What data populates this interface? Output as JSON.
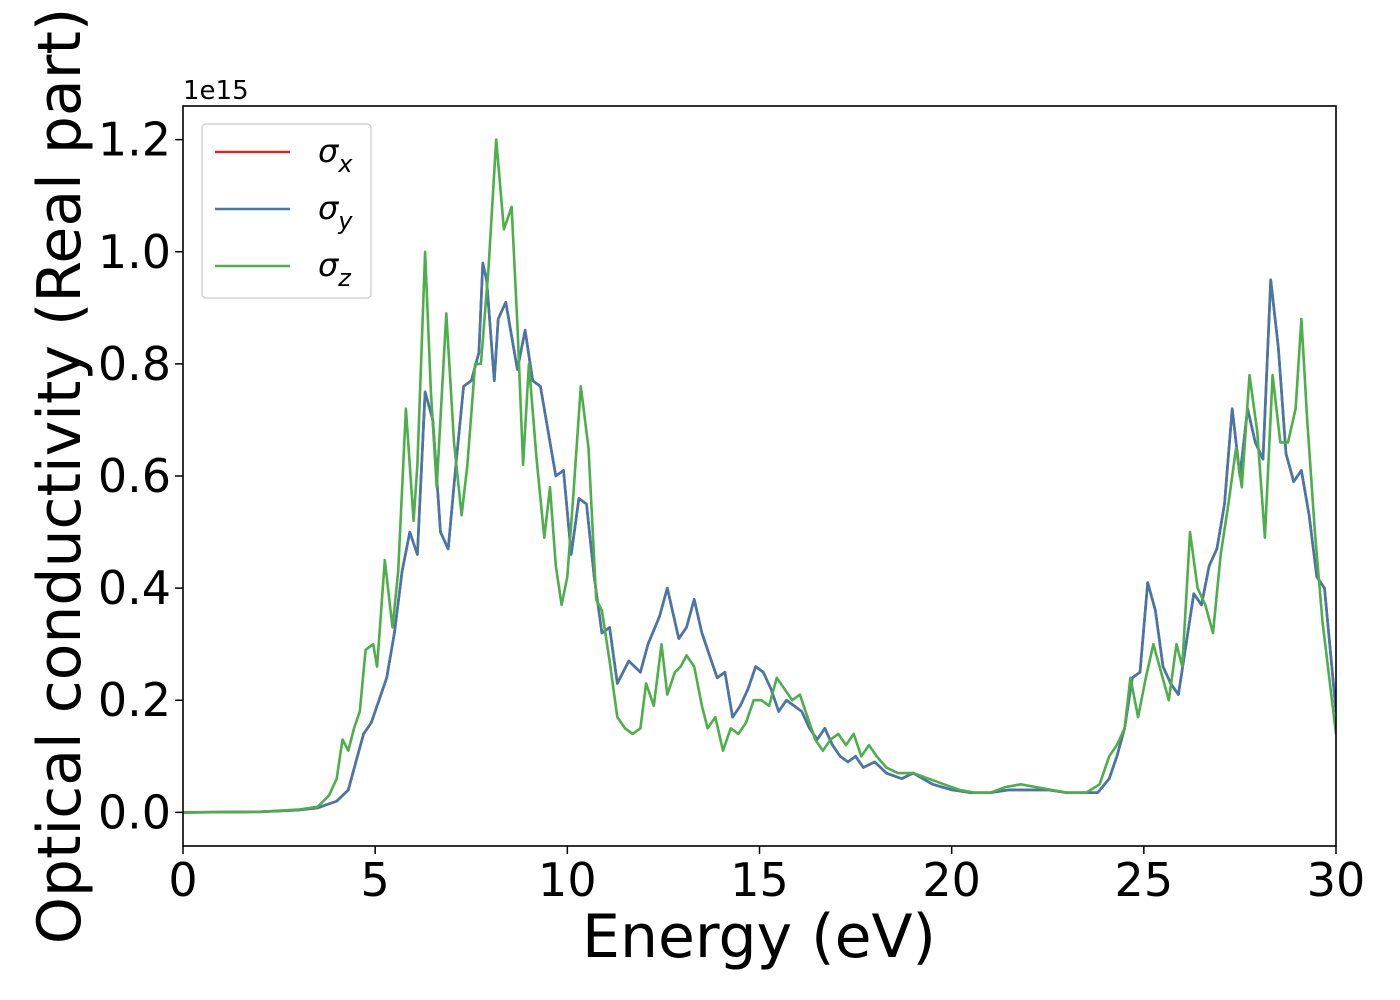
{
  "chart_data": {
    "type": "line",
    "title": "",
    "xlabel": "Energy (eV)",
    "ylabel": "Optical conductivity (Real part)",
    "y_offset_label": "1e15",
    "xlim": [
      0,
      30
    ],
    "ylim": [
      -0.06,
      1.26
    ],
    "x_ticks": [
      0,
      5,
      10,
      15,
      20,
      25,
      30
    ],
    "x_tick_labels": [
      "0",
      "5",
      "10",
      "15",
      "20",
      "25",
      "30"
    ],
    "y_ticks": [
      0.0,
      0.2,
      0.4,
      0.6,
      0.8,
      1.0,
      1.2
    ],
    "y_tick_labels": [
      "0.0",
      "0.2",
      "0.4",
      "0.6",
      "0.8",
      "1.0",
      "1.2"
    ],
    "grid": false,
    "legend_position": "top-left",
    "series": [
      {
        "name": "σx",
        "color": "#d62728",
        "x": [
          0,
          2,
          3,
          3.5,
          4,
          4.3,
          4.5,
          4.7,
          4.9,
          5.1,
          5.3,
          5.5,
          5.7,
          5.9,
          6.1,
          6.3,
          6.5,
          6.7,
          6.9,
          7.1,
          7.3,
          7.5,
          7.7,
          7.8,
          7.9,
          8.1,
          8.2,
          8.4,
          8.6,
          8.7,
          8.9,
          9.1,
          9.3,
          9.5,
          9.7,
          9.9,
          10.1,
          10.3,
          10.5,
          10.7,
          10.9,
          11.1,
          11.3,
          11.6,
          11.9,
          12.1,
          12.4,
          12.6,
          12.9,
          13.1,
          13.3,
          13.5,
          13.7,
          13.9,
          14.1,
          14.3,
          14.5,
          14.7,
          14.9,
          15.1,
          15.3,
          15.5,
          15.7,
          15.9,
          16.1,
          16.3,
          16.5,
          16.7,
          16.9,
          17.1,
          17.3,
          17.5,
          17.7,
          18,
          18.3,
          18.7,
          19,
          19.5,
          20,
          20.5,
          21,
          21.5,
          22,
          22.5,
          23,
          23.5,
          23.8,
          24.1,
          24.3,
          24.5,
          24.7,
          24.9,
          25.1,
          25.3,
          25.5,
          25.7,
          25.9,
          26.1,
          26.3,
          26.5,
          26.7,
          26.9,
          27.1,
          27.3,
          27.5,
          27.7,
          27.9,
          28.1,
          28.3,
          28.5,
          28.7,
          28.9,
          29.1,
          29.3,
          29.5,
          29.7,
          30
        ],
        "values": [
          0,
          0.001,
          0.004,
          0.008,
          0.02,
          0.04,
          0.09,
          0.14,
          0.16,
          0.2,
          0.24,
          0.32,
          0.43,
          0.5,
          0.46,
          0.75,
          0.7,
          0.5,
          0.47,
          0.62,
          0.76,
          0.77,
          0.82,
          0.98,
          0.95,
          0.77,
          0.88,
          0.91,
          0.83,
          0.79,
          0.86,
          0.77,
          0.76,
          0.68,
          0.6,
          0.61,
          0.46,
          0.56,
          0.55,
          0.42,
          0.32,
          0.33,
          0.23,
          0.27,
          0.25,
          0.3,
          0.35,
          0.4,
          0.31,
          0.33,
          0.38,
          0.32,
          0.28,
          0.24,
          0.25,
          0.17,
          0.19,
          0.22,
          0.26,
          0.25,
          0.22,
          0.18,
          0.2,
          0.19,
          0.18,
          0.15,
          0.13,
          0.15,
          0.12,
          0.1,
          0.09,
          0.1,
          0.08,
          0.09,
          0.07,
          0.06,
          0.07,
          0.05,
          0.04,
          0.035,
          0.035,
          0.04,
          0.04,
          0.04,
          0.035,
          0.035,
          0.035,
          0.06,
          0.1,
          0.15,
          0.24,
          0.25,
          0.41,
          0.36,
          0.26,
          0.23,
          0.21,
          0.3,
          0.39,
          0.37,
          0.44,
          0.47,
          0.55,
          0.72,
          0.6,
          0.72,
          0.66,
          0.63,
          0.95,
          0.83,
          0.64,
          0.59,
          0.61,
          0.53,
          0.42,
          0.4,
          0.18
        ]
      },
      {
        "name": "σy",
        "color": "#4477aa",
        "x": [
          0,
          2,
          3,
          3.5,
          4,
          4.3,
          4.5,
          4.7,
          4.9,
          5.1,
          5.3,
          5.5,
          5.7,
          5.9,
          6.1,
          6.3,
          6.5,
          6.7,
          6.9,
          7.1,
          7.3,
          7.5,
          7.7,
          7.8,
          7.9,
          8.1,
          8.2,
          8.4,
          8.6,
          8.7,
          8.9,
          9.1,
          9.3,
          9.5,
          9.7,
          9.9,
          10.1,
          10.3,
          10.5,
          10.7,
          10.9,
          11.1,
          11.3,
          11.6,
          11.9,
          12.1,
          12.4,
          12.6,
          12.9,
          13.1,
          13.3,
          13.5,
          13.7,
          13.9,
          14.1,
          14.3,
          14.5,
          14.7,
          14.9,
          15.1,
          15.3,
          15.5,
          15.7,
          15.9,
          16.1,
          16.3,
          16.5,
          16.7,
          16.9,
          17.1,
          17.3,
          17.5,
          17.7,
          18,
          18.3,
          18.7,
          19,
          19.5,
          20,
          20.5,
          21,
          21.5,
          22,
          22.5,
          23,
          23.5,
          23.8,
          24.1,
          24.3,
          24.5,
          24.7,
          24.9,
          25.1,
          25.3,
          25.5,
          25.7,
          25.9,
          26.1,
          26.3,
          26.5,
          26.7,
          26.9,
          27.1,
          27.3,
          27.5,
          27.7,
          27.9,
          28.1,
          28.3,
          28.5,
          28.7,
          28.9,
          29.1,
          29.3,
          29.5,
          29.7,
          30
        ],
        "values": [
          0,
          0.001,
          0.004,
          0.008,
          0.02,
          0.04,
          0.09,
          0.14,
          0.16,
          0.2,
          0.24,
          0.32,
          0.43,
          0.5,
          0.46,
          0.75,
          0.7,
          0.5,
          0.47,
          0.62,
          0.76,
          0.77,
          0.82,
          0.98,
          0.95,
          0.77,
          0.88,
          0.91,
          0.83,
          0.79,
          0.86,
          0.77,
          0.76,
          0.68,
          0.6,
          0.61,
          0.46,
          0.56,
          0.55,
          0.42,
          0.32,
          0.33,
          0.23,
          0.27,
          0.25,
          0.3,
          0.35,
          0.4,
          0.31,
          0.33,
          0.38,
          0.32,
          0.28,
          0.24,
          0.25,
          0.17,
          0.19,
          0.22,
          0.26,
          0.25,
          0.22,
          0.18,
          0.2,
          0.19,
          0.18,
          0.15,
          0.13,
          0.15,
          0.12,
          0.1,
          0.09,
          0.1,
          0.08,
          0.09,
          0.07,
          0.06,
          0.07,
          0.05,
          0.04,
          0.035,
          0.035,
          0.04,
          0.04,
          0.04,
          0.035,
          0.035,
          0.035,
          0.06,
          0.1,
          0.15,
          0.24,
          0.25,
          0.41,
          0.36,
          0.26,
          0.23,
          0.21,
          0.3,
          0.39,
          0.37,
          0.44,
          0.47,
          0.55,
          0.72,
          0.6,
          0.72,
          0.66,
          0.63,
          0.95,
          0.83,
          0.64,
          0.59,
          0.61,
          0.53,
          0.42,
          0.4,
          0.18
        ]
      },
      {
        "name": "σz",
        "color": "#4daf4a",
        "x": [
          0,
          2,
          3,
          3.5,
          3.8,
          4,
          4.15,
          4.3,
          4.45,
          4.6,
          4.75,
          4.95,
          5.05,
          5.25,
          5.45,
          5.6,
          5.8,
          6.0,
          6.1,
          6.3,
          6.45,
          6.6,
          6.85,
          7.05,
          7.25,
          7.4,
          7.6,
          7.75,
          7.95,
          8.15,
          8.35,
          8.55,
          8.7,
          8.85,
          9.0,
          9.2,
          9.4,
          9.55,
          9.7,
          9.85,
          10.0,
          10.15,
          10.35,
          10.55,
          10.75,
          10.9,
          11.1,
          11.3,
          11.5,
          11.7,
          11.9,
          12.05,
          12.25,
          12.45,
          12.6,
          12.8,
          12.95,
          13.1,
          13.3,
          13.5,
          13.65,
          13.85,
          14.05,
          14.25,
          14.45,
          14.65,
          14.85,
          15.05,
          15.25,
          15.45,
          15.65,
          15.85,
          16.05,
          16.25,
          16.45,
          16.65,
          16.85,
          17.05,
          17.25,
          17.45,
          17.65,
          17.85,
          18.05,
          18.3,
          18.6,
          19.0,
          19.4,
          19.8,
          20.2,
          20.6,
          21.0,
          21.4,
          21.8,
          22.2,
          22.6,
          23.0,
          23.5,
          23.85,
          24.1,
          24.3,
          24.5,
          24.65,
          24.85,
          25.05,
          25.25,
          25.45,
          25.65,
          25.85,
          26.0,
          26.2,
          26.4,
          26.6,
          26.8,
          27.0,
          27.2,
          27.4,
          27.55,
          27.75,
          27.95,
          28.15,
          28.35,
          28.55,
          28.75,
          28.95,
          29.1,
          29.25,
          29.45,
          29.65,
          30
        ],
        "values": [
          0,
          0.001,
          0.005,
          0.01,
          0.03,
          0.06,
          0.13,
          0.11,
          0.15,
          0.18,
          0.29,
          0.3,
          0.26,
          0.45,
          0.33,
          0.43,
          0.72,
          0.52,
          0.62,
          1.0,
          0.75,
          0.58,
          0.89,
          0.66,
          0.53,
          0.62,
          0.8,
          0.8,
          0.97,
          1.2,
          1.04,
          1.08,
          0.87,
          0.62,
          0.8,
          0.63,
          0.49,
          0.58,
          0.44,
          0.37,
          0.42,
          0.56,
          0.76,
          0.65,
          0.38,
          0.36,
          0.27,
          0.17,
          0.15,
          0.14,
          0.15,
          0.23,
          0.19,
          0.3,
          0.21,
          0.25,
          0.26,
          0.28,
          0.26,
          0.19,
          0.15,
          0.17,
          0.11,
          0.15,
          0.14,
          0.16,
          0.2,
          0.2,
          0.19,
          0.24,
          0.22,
          0.2,
          0.21,
          0.17,
          0.13,
          0.11,
          0.13,
          0.14,
          0.12,
          0.14,
          0.1,
          0.12,
          0.1,
          0.08,
          0.07,
          0.07,
          0.06,
          0.05,
          0.04,
          0.035,
          0.035,
          0.045,
          0.05,
          0.045,
          0.04,
          0.035,
          0.035,
          0.05,
          0.1,
          0.12,
          0.15,
          0.24,
          0.17,
          0.24,
          0.3,
          0.25,
          0.2,
          0.3,
          0.26,
          0.5,
          0.4,
          0.37,
          0.32,
          0.46,
          0.55,
          0.65,
          0.58,
          0.78,
          0.68,
          0.49,
          0.78,
          0.66,
          0.66,
          0.72,
          0.88,
          0.7,
          0.5,
          0.34,
          0.14
        ]
      }
    ]
  }
}
